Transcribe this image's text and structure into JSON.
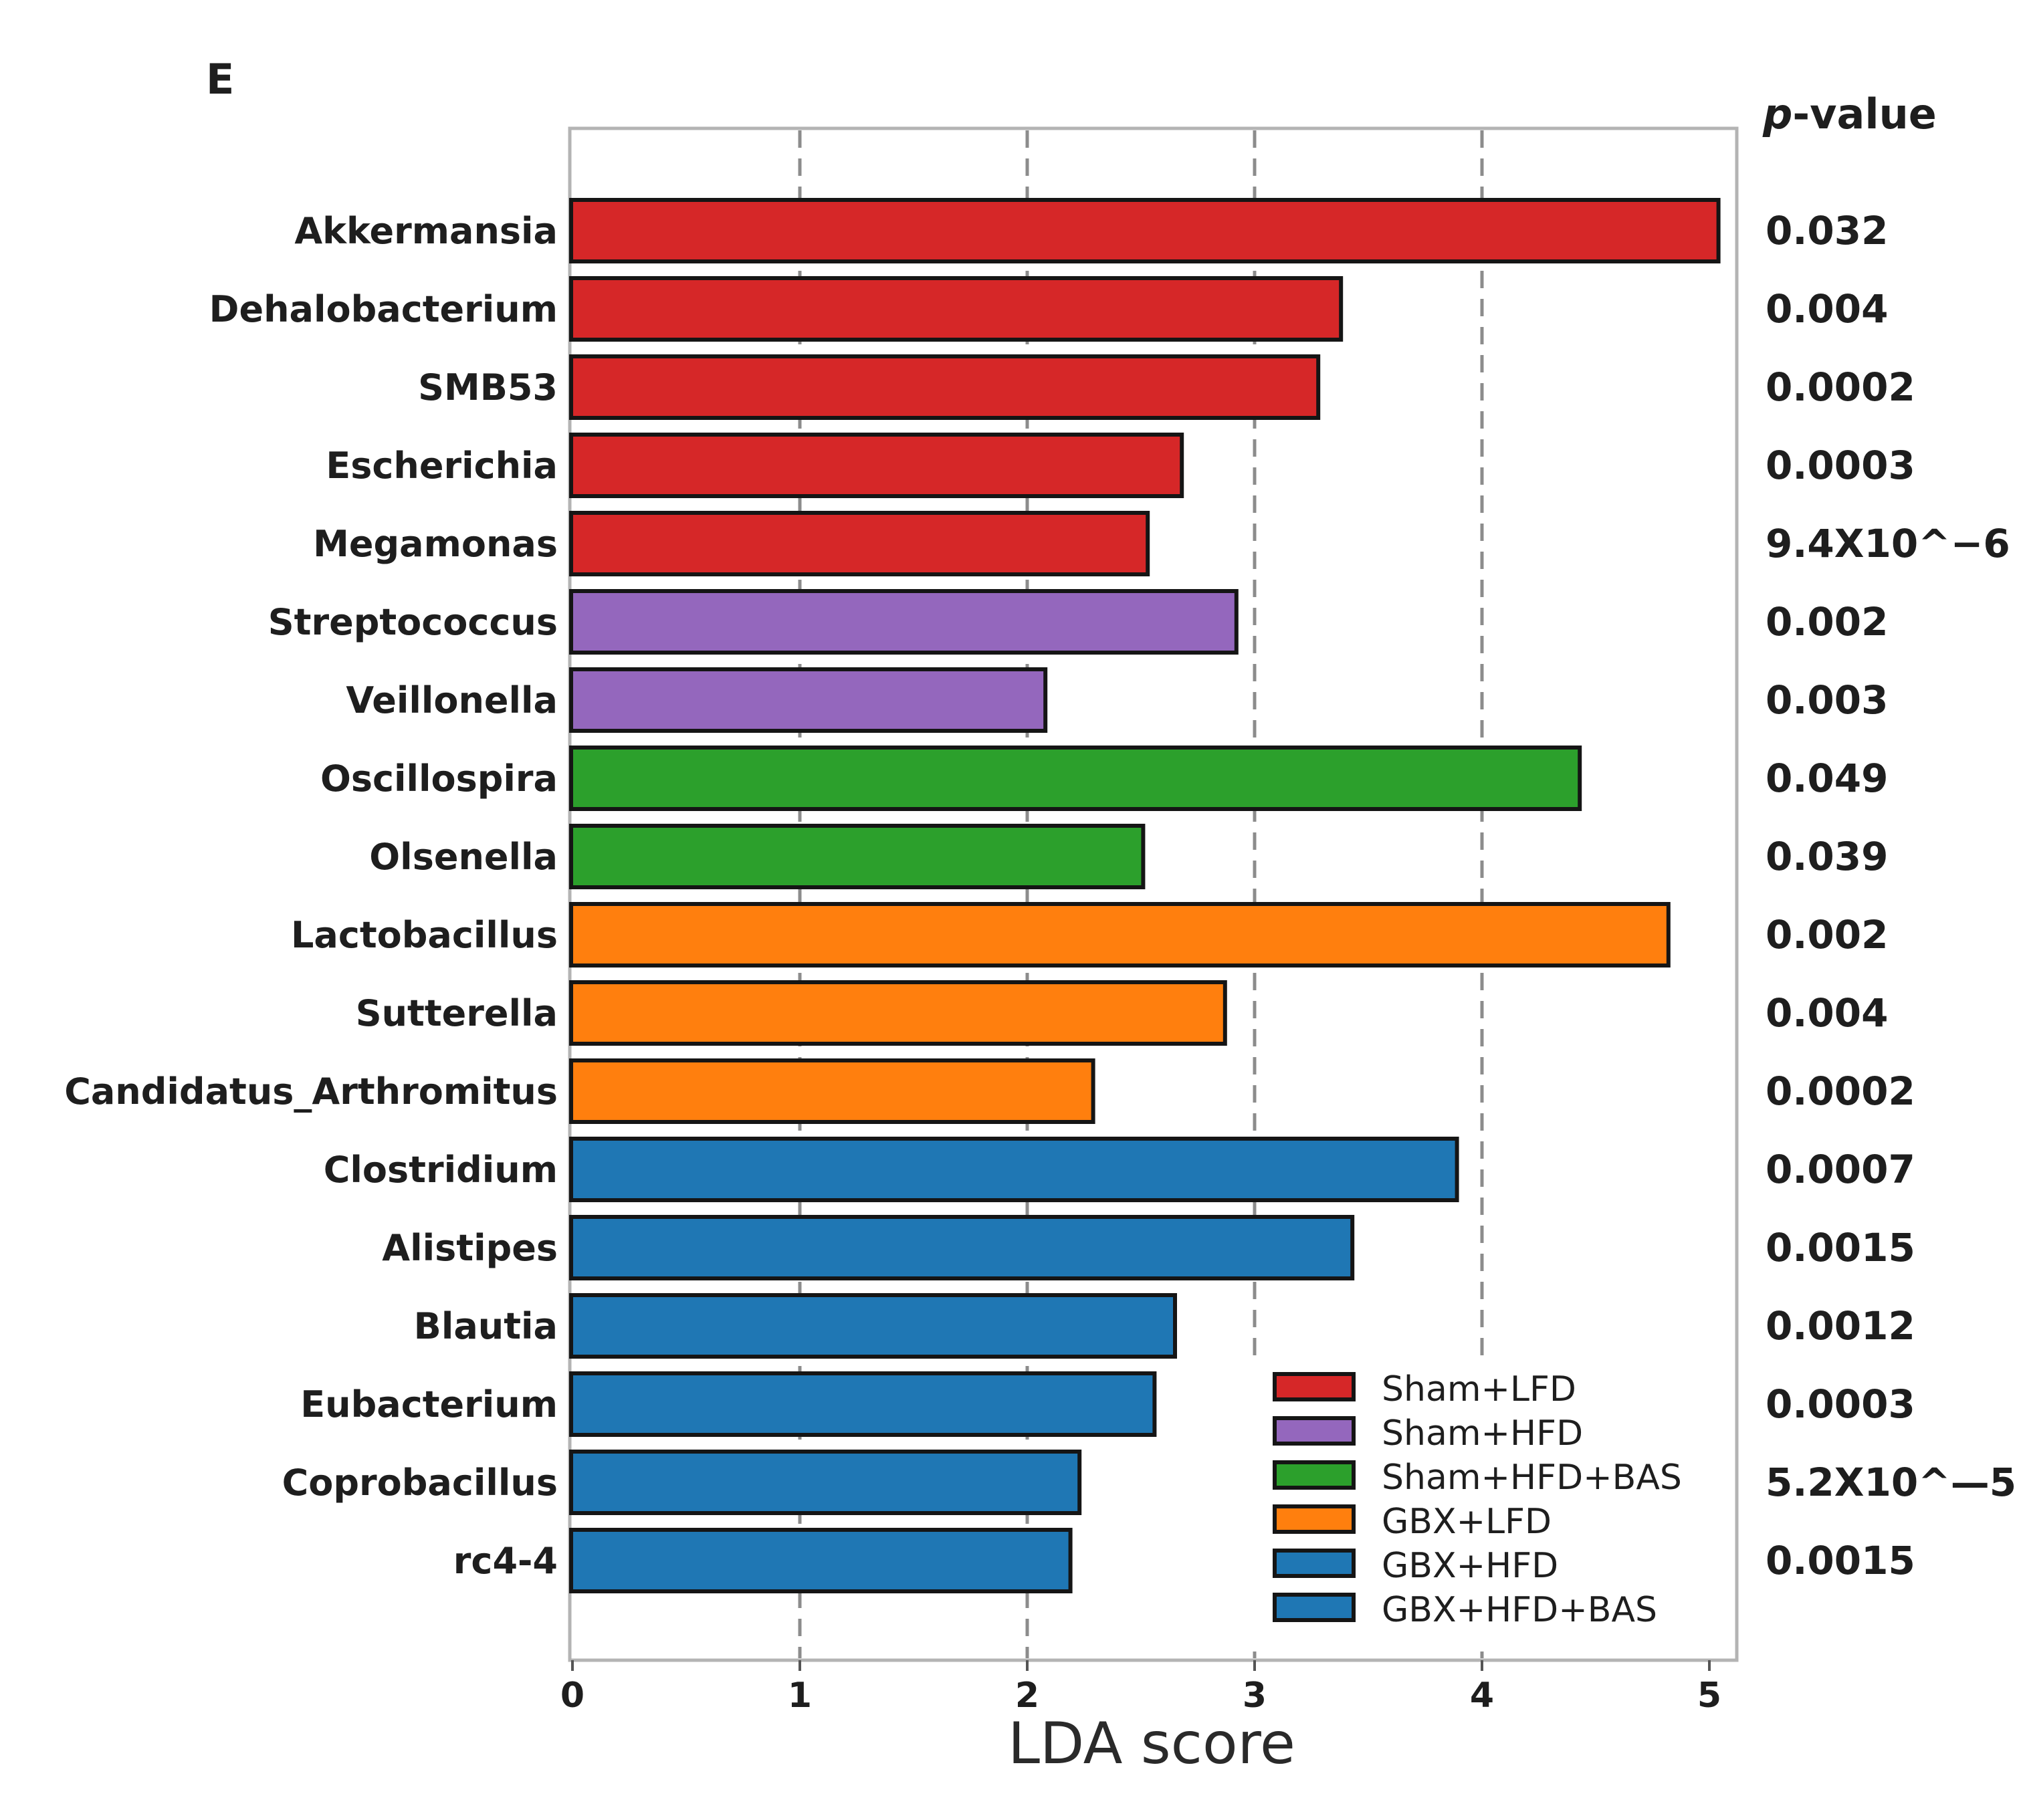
{
  "panel_label": "E",
  "p_value_header": {
    "italic": "p",
    "rest": "-value"
  },
  "chart_data": {
    "type": "bar",
    "orientation": "horizontal",
    "xlabel": "LDA score",
    "ylabel": "",
    "xlim": [
      0,
      5.15
    ],
    "xticks": [
      0,
      1,
      2,
      3,
      4,
      5
    ],
    "grid": "vertical dashed at 1, 2, 3, 4",
    "legend_position": "lower-right",
    "categories": [
      "Akkermansia",
      "Dehalobacterium",
      "SMB53",
      "Escherichia",
      "Megamonas",
      "Streptococcus",
      "Veillonella",
      "Oscillospira",
      "Olsenella",
      "Lactobacillus",
      "Sutterella",
      "Candidatus_Arthromitus",
      "Clostridium",
      "Alistipes",
      "Blautia",
      "Eubacterium",
      "Coprobacillus",
      "rc4-4"
    ],
    "values": [
      5.04,
      3.38,
      3.28,
      2.68,
      2.53,
      2.92,
      2.08,
      4.43,
      2.51,
      4.82,
      2.87,
      2.29,
      3.89,
      3.43,
      2.65,
      2.56,
      2.23,
      2.19
    ],
    "groups": [
      "Sham+LFD",
      "Sham+LFD",
      "Sham+LFD",
      "Sham+LFD",
      "Sham+LFD",
      "Sham+HFD",
      "Sham+HFD",
      "Sham+HFD+BAS",
      "Sham+HFD+BAS",
      "GBX+LFD",
      "GBX+LFD",
      "GBX+LFD",
      "GBX+HFD+BAS",
      "GBX+HFD+BAS",
      "GBX+HFD+BAS",
      "GBX+HFD+BAS",
      "GBX+HFD+BAS",
      "GBX+HFD+BAS"
    ],
    "p_values": [
      "0.032",
      "0.004",
      "0.0002",
      "0.0003",
      "9.4X10^−6",
      "0.002",
      "0.003",
      "0.049",
      "0.039",
      "0.002",
      "0.004",
      "0.0002",
      "0.0007",
      "0.0015",
      "0.0012",
      "0.0003",
      "5.2X10^—5",
      "0.0015"
    ],
    "legend": [
      {
        "label": "Sham+LFD",
        "color": "#d62728"
      },
      {
        "label": "Sham+HFD",
        "color": "#9467bd"
      },
      {
        "label": "Sham+HFD+BAS",
        "color": "#2ca02c"
      },
      {
        "label": "GBX+LFD",
        "color": "#ff7f0e"
      },
      {
        "label": "GBX+HFD",
        "color": "#1f77b4"
      },
      {
        "label": "GBX+HFD+BAS",
        "color": "#1f77b4"
      }
    ]
  }
}
